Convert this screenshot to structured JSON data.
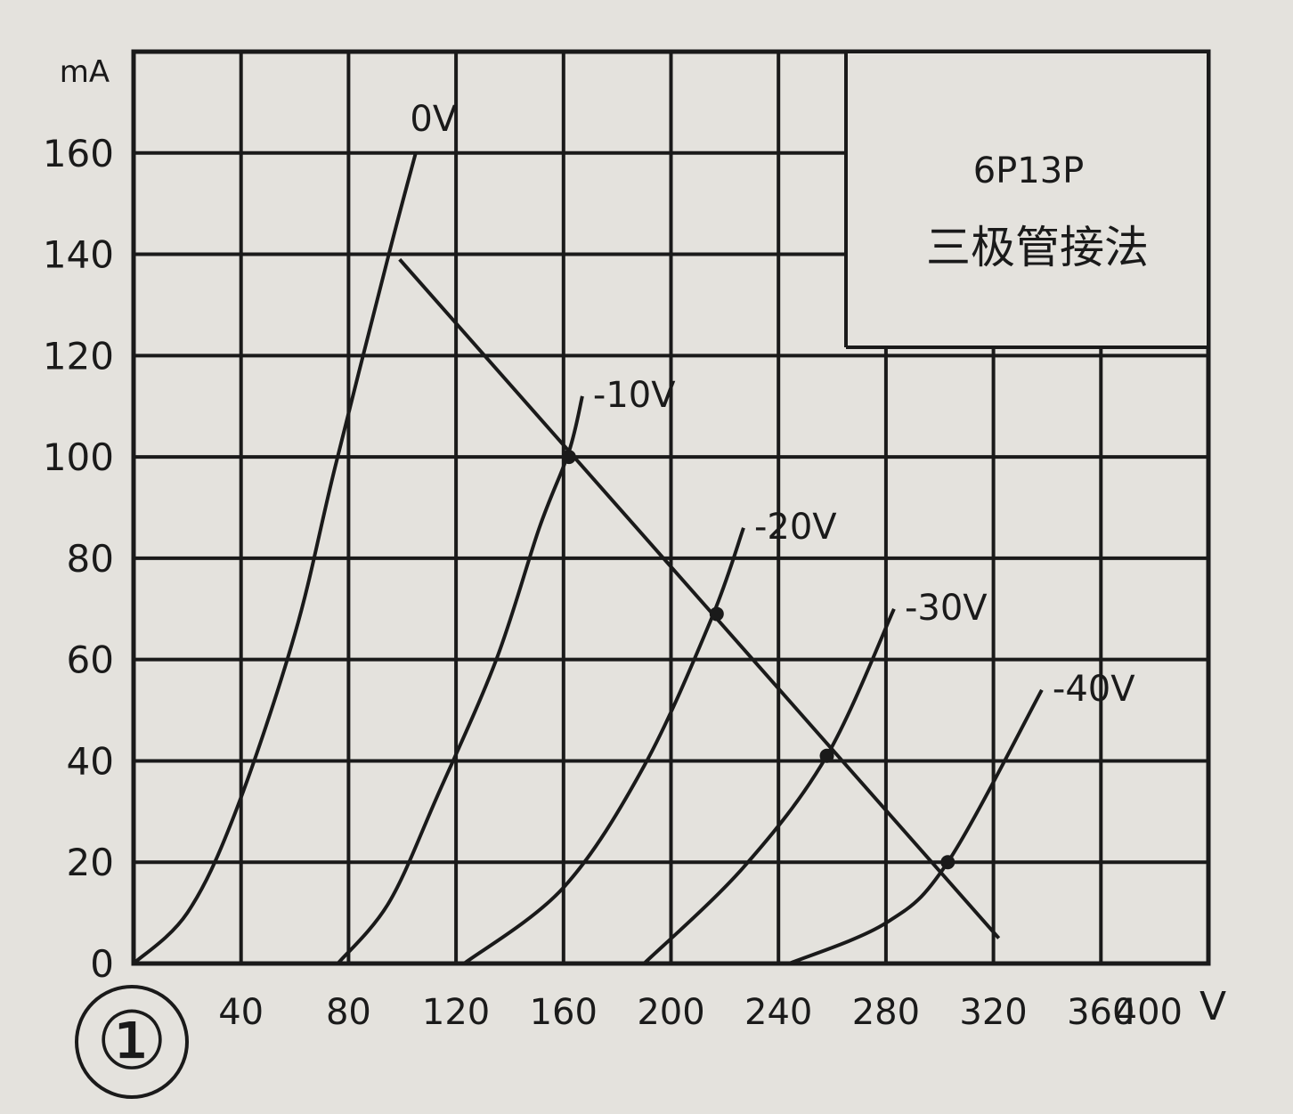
{
  "chart_data": {
    "type": "line",
    "title": "6P13P",
    "subtitle": "三极管接法",
    "figure_number": "①",
    "xlabel": "",
    "x_unit": "V",
    "ylabel": "",
    "y_unit": "mA",
    "xlim": [
      0,
      400
    ],
    "ylim": [
      0,
      180
    ],
    "x_ticks": [
      40,
      80,
      120,
      160,
      200,
      240,
      280,
      320,
      360,
      400
    ],
    "y_ticks": [
      0,
      20,
      40,
      60,
      80,
      100,
      120,
      140,
      160
    ],
    "grid": true,
    "series": [
      {
        "name": "0V",
        "points": [
          [
            0,
            0
          ],
          [
            20,
            10
          ],
          [
            38,
            30
          ],
          [
            60,
            65
          ],
          [
            75,
            98
          ],
          [
            95,
            140
          ],
          [
            105,
            160
          ]
        ]
      },
      {
        "name": "-10V",
        "points": [
          [
            76,
            0
          ],
          [
            95,
            12
          ],
          [
            113,
            33
          ],
          [
            135,
            60
          ],
          [
            151,
            86
          ],
          [
            162,
            101
          ],
          [
            167,
            112
          ]
        ]
      },
      {
        "name": "-20V",
        "points": [
          [
            123,
            0
          ],
          [
            160,
            15
          ],
          [
            190,
            39
          ],
          [
            215,
            68
          ],
          [
            227,
            86
          ]
        ]
      },
      {
        "name": "-30V",
        "points": [
          [
            190,
            0
          ],
          [
            227,
            19
          ],
          [
            258,
            41
          ],
          [
            283,
            70
          ]
        ]
      },
      {
        "name": "-40V",
        "points": [
          [
            244,
            0
          ],
          [
            280,
            8
          ],
          [
            303,
            20
          ],
          [
            338,
            54
          ]
        ]
      }
    ],
    "load_line": {
      "points": [
        [
          99,
          139
        ],
        [
          322,
          5
        ]
      ],
      "marked_points": [
        [
          162,
          100
        ],
        [
          217,
          69
        ],
        [
          258,
          41
        ],
        [
          303,
          20
        ]
      ]
    },
    "colors": {
      "ink": "#1a1a1a",
      "paper": "#e4e2dd"
    }
  }
}
